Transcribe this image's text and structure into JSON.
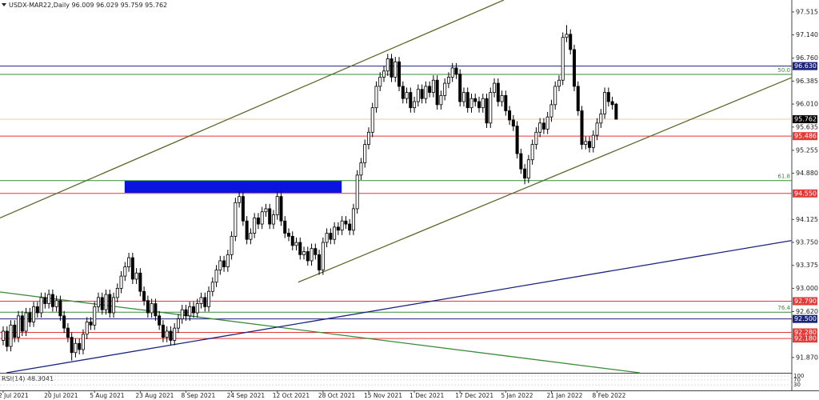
{
  "chart_data": {
    "type": "candlestick",
    "title": "USDX-MAR22,Daily",
    "categories": [
      "2 Jul 2021",
      null,
      null,
      null,
      null,
      null,
      null,
      null,
      null,
      null,
      null,
      null,
      "20 Jul 2021",
      null,
      null,
      null,
      null,
      null,
      null,
      null,
      null,
      null,
      null,
      null,
      "5 Aug 2021",
      null,
      null,
      null,
      null,
      null,
      null,
      null,
      null,
      null,
      null,
      null,
      "23 Aug 2021",
      null,
      null,
      null,
      null,
      null,
      null,
      null,
      null,
      null,
      null,
      null,
      "8 Sep 2021",
      null,
      null,
      null,
      null,
      null,
      null,
      null,
      null,
      null,
      null,
      null,
      "24 Sep 2021",
      null,
      null,
      null,
      null,
      null,
      null,
      null,
      null,
      null,
      null,
      null,
      "12 Oct 2021",
      null,
      null,
      null,
      null,
      null,
      null,
      null,
      null,
      null,
      null,
      null,
      "28 Oct 2021",
      null,
      null,
      null,
      null,
      null,
      null,
      null,
      null,
      null,
      null,
      null,
      "15 Nov 2021",
      null,
      null,
      null,
      null,
      null,
      null,
      null,
      null,
      null,
      null,
      null,
      "1 Dec 2021",
      null,
      null,
      null,
      null,
      null,
      null,
      null,
      null,
      null,
      null,
      null,
      "17 Dec 2021",
      null,
      null,
      null,
      null,
      null,
      null,
      null,
      null,
      null,
      null,
      null,
      "5 Jan 2022",
      null,
      null,
      null,
      null,
      null,
      null,
      null,
      null,
      null,
      null,
      null,
      "21 Jan 2022",
      null,
      null,
      null,
      null,
      null,
      null,
      null,
      null,
      null,
      null,
      null,
      "8 Feb 2022",
      null,
      null,
      null,
      null,
      null
    ],
    "candles": [
      [
        92.15,
        92.38,
        92.07,
        92.3
      ],
      [
        92.3,
        92.38,
        91.97,
        92.05
      ],
      [
        92.05,
        92.48,
        91.97,
        92.4
      ],
      [
        92.4,
        92.48,
        92.12,
        92.2
      ],
      [
        92.2,
        92.63,
        92.12,
        92.55
      ],
      [
        92.55,
        92.63,
        92.22,
        92.3
      ],
      [
        92.3,
        92.68,
        92.22,
        92.6
      ],
      [
        92.6,
        92.68,
        92.37,
        92.45
      ],
      [
        92.45,
        92.78,
        92.37,
        92.7
      ],
      [
        92.7,
        92.78,
        92.52,
        92.6
      ],
      [
        92.6,
        92.93,
        92.52,
        92.85
      ],
      [
        92.85,
        92.93,
        92.67,
        92.75
      ],
      [
        92.75,
        92.98,
        92.67,
        92.9
      ],
      [
        92.9,
        92.98,
        92.62,
        92.7
      ],
      [
        92.7,
        92.88,
        92.62,
        92.8
      ],
      [
        92.8,
        92.88,
        92.47,
        92.55
      ],
      [
        92.55,
        92.63,
        92.27,
        92.35
      ],
      [
        92.35,
        92.43,
        92.12,
        92.2
      ],
      [
        92.2,
        92.28,
        91.82,
        91.95
      ],
      [
        91.95,
        92.18,
        91.87,
        92.1
      ],
      [
        92.1,
        92.18,
        91.92,
        92.0
      ],
      [
        92.0,
        92.33,
        91.92,
        92.25
      ],
      [
        92.25,
        92.53,
        92.17,
        92.45
      ],
      [
        92.45,
        92.53,
        92.32,
        92.4
      ],
      [
        92.4,
        92.78,
        92.32,
        92.7
      ],
      [
        92.7,
        92.93,
        92.62,
        92.85
      ],
      [
        92.85,
        92.93,
        92.57,
        92.65
      ],
      [
        92.65,
        92.98,
        92.57,
        92.9
      ],
      [
        92.9,
        92.98,
        92.52,
        92.6
      ],
      [
        92.6,
        92.93,
        92.52,
        92.85
      ],
      [
        92.85,
        93.08,
        92.77,
        93.0
      ],
      [
        93.0,
        93.28,
        92.92,
        93.2
      ],
      [
        93.2,
        93.43,
        93.12,
        93.35
      ],
      [
        93.35,
        93.58,
        93.27,
        93.5
      ],
      [
        93.5,
        93.58,
        93.07,
        93.15
      ],
      [
        93.15,
        93.33,
        93.07,
        93.25
      ],
      [
        93.25,
        93.33,
        92.87,
        92.95
      ],
      [
        92.95,
        93.03,
        92.72,
        92.8
      ],
      [
        92.8,
        92.88,
        92.52,
        92.6
      ],
      [
        92.6,
        92.83,
        92.52,
        92.75
      ],
      [
        92.75,
        92.83,
        92.47,
        92.55
      ],
      [
        92.55,
        92.63,
        92.32,
        92.4
      ],
      [
        92.4,
        92.48,
        92.12,
        92.2
      ],
      [
        92.2,
        92.38,
        92.12,
        92.3
      ],
      [
        92.3,
        92.38,
        92.07,
        92.15
      ],
      [
        92.15,
        92.43,
        92.07,
        92.35
      ],
      [
        92.35,
        92.58,
        92.27,
        92.5
      ],
      [
        92.5,
        92.73,
        92.42,
        92.65
      ],
      [
        92.65,
        92.73,
        92.47,
        92.55
      ],
      [
        92.55,
        92.78,
        92.47,
        92.7
      ],
      [
        92.7,
        92.78,
        92.52,
        92.6
      ],
      [
        92.6,
        92.83,
        92.52,
        92.75
      ],
      [
        92.75,
        92.93,
        92.67,
        92.85
      ],
      [
        92.85,
        92.93,
        92.62,
        92.7
      ],
      [
        92.7,
        93.03,
        92.62,
        92.95
      ],
      [
        92.95,
        93.18,
        92.87,
        93.1
      ],
      [
        93.1,
        93.38,
        93.02,
        93.3
      ],
      [
        93.3,
        93.53,
        93.22,
        93.45
      ],
      [
        93.45,
        93.53,
        93.27,
        93.35
      ],
      [
        93.35,
        93.63,
        93.27,
        93.55
      ],
      [
        93.55,
        93.93,
        93.47,
        93.85
      ],
      [
        93.85,
        94.48,
        93.77,
        94.4
      ],
      [
        94.4,
        94.58,
        94.32,
        94.5
      ],
      [
        94.5,
        94.58,
        94.02,
        94.1
      ],
      [
        94.1,
        94.18,
        93.72,
        93.8
      ],
      [
        93.8,
        93.98,
        93.72,
        93.9
      ],
      [
        93.9,
        94.23,
        93.82,
        94.15
      ],
      [
        94.15,
        94.23,
        93.97,
        94.05
      ],
      [
        94.05,
        94.33,
        93.97,
        94.25
      ],
      [
        94.25,
        94.38,
        94.17,
        94.3
      ],
      [
        94.3,
        94.38,
        93.97,
        94.05
      ],
      [
        94.05,
        94.28,
        93.97,
        94.2
      ],
      [
        94.2,
        94.58,
        94.12,
        94.5
      ],
      [
        94.5,
        94.58,
        94.02,
        94.1
      ],
      [
        94.1,
        94.18,
        93.82,
        93.9
      ],
      [
        93.9,
        93.98,
        93.77,
        93.85
      ],
      [
        93.85,
        93.93,
        93.62,
        93.7
      ],
      [
        93.7,
        93.83,
        93.62,
        93.75
      ],
      [
        93.75,
        93.83,
        93.47,
        93.55
      ],
      [
        93.55,
        93.68,
        93.47,
        93.6
      ],
      [
        93.6,
        93.68,
        93.37,
        93.45
      ],
      [
        93.45,
        93.73,
        93.37,
        93.65
      ],
      [
        93.65,
        93.73,
        93.47,
        93.55
      ],
      [
        93.55,
        93.63,
        93.22,
        93.3
      ],
      [
        93.3,
        93.83,
        93.22,
        93.75
      ],
      [
        93.75,
        93.98,
        93.67,
        93.9
      ],
      [
        93.9,
        93.98,
        93.72,
        93.8
      ],
      [
        93.8,
        94.08,
        93.72,
        94.0
      ],
      [
        94.0,
        94.08,
        93.87,
        93.95
      ],
      [
        93.95,
        94.18,
        93.87,
        94.1
      ],
      [
        94.1,
        94.18,
        93.97,
        94.05
      ],
      [
        94.05,
        94.13,
        93.87,
        93.95
      ],
      [
        93.95,
        94.38,
        93.87,
        94.3
      ],
      [
        94.3,
        94.93,
        94.22,
        94.85
      ],
      [
        94.85,
        95.13,
        94.77,
        95.05
      ],
      [
        95.05,
        95.43,
        94.97,
        95.35
      ],
      [
        95.35,
        95.63,
        95.27,
        95.55
      ],
      [
        95.55,
        96.03,
        95.47,
        95.95
      ],
      [
        95.95,
        96.38,
        95.87,
        96.3
      ],
      [
        96.3,
        96.53,
        96.22,
        96.45
      ],
      [
        96.45,
        96.63,
        96.37,
        96.55
      ],
      [
        96.55,
        96.83,
        96.47,
        96.75
      ],
      [
        96.75,
        96.83,
        96.37,
        96.45
      ],
      [
        96.45,
        96.78,
        96.37,
        96.7
      ],
      [
        96.7,
        96.78,
        96.22,
        96.3
      ],
      [
        96.3,
        96.38,
        96.02,
        96.1
      ],
      [
        96.1,
        96.28,
        96.02,
        96.2
      ],
      [
        96.2,
        96.28,
        95.87,
        95.95
      ],
      [
        95.95,
        96.13,
        95.87,
        96.05
      ],
      [
        96.05,
        96.33,
        95.97,
        96.25
      ],
      [
        96.25,
        96.33,
        96.02,
        96.1
      ],
      [
        96.1,
        96.38,
        96.02,
        96.3
      ],
      [
        96.3,
        96.38,
        96.12,
        96.2
      ],
      [
        96.2,
        96.48,
        96.12,
        96.4
      ],
      [
        96.4,
        96.48,
        95.92,
        96.0
      ],
      [
        96.0,
        96.23,
        95.92,
        96.15
      ],
      [
        96.15,
        96.43,
        96.07,
        96.35
      ],
      [
        96.35,
        96.53,
        96.27,
        96.45
      ],
      [
        96.45,
        96.68,
        96.37,
        96.6
      ],
      [
        96.6,
        96.68,
        96.42,
        96.5
      ],
      [
        96.5,
        96.58,
        95.97,
        96.05
      ],
      [
        96.05,
        96.28,
        95.97,
        96.2
      ],
      [
        96.2,
        96.28,
        95.87,
        95.95
      ],
      [
        95.95,
        96.18,
        95.87,
        96.1
      ],
      [
        96.1,
        96.18,
        95.97,
        96.05
      ],
      [
        96.05,
        96.13,
        95.87,
        95.95
      ],
      [
        95.95,
        96.18,
        95.87,
        96.1
      ],
      [
        96.1,
        96.18,
        95.62,
        95.7
      ],
      [
        95.7,
        96.28,
        95.62,
        96.2
      ],
      [
        96.2,
        96.43,
        96.12,
        96.35
      ],
      [
        96.35,
        96.43,
        95.97,
        96.05
      ],
      [
        96.05,
        96.23,
        95.97,
        96.15
      ],
      [
        96.15,
        96.23,
        95.82,
        95.9
      ],
      [
        95.9,
        95.98,
        95.67,
        95.75
      ],
      [
        95.75,
        95.83,
        95.57,
        95.65
      ],
      [
        95.65,
        95.73,
        95.12,
        95.2
      ],
      [
        95.2,
        95.28,
        94.87,
        94.95
      ],
      [
        94.95,
        95.03,
        94.7,
        94.8
      ],
      [
        94.8,
        95.18,
        94.72,
        95.1
      ],
      [
        95.1,
        95.43,
        95.02,
        95.35
      ],
      [
        95.35,
        95.63,
        95.27,
        95.55
      ],
      [
        95.55,
        95.78,
        95.47,
        95.7
      ],
      [
        95.7,
        95.78,
        95.52,
        95.6
      ],
      [
        95.6,
        95.88,
        95.52,
        95.8
      ],
      [
        95.8,
        96.08,
        95.72,
        96.0
      ],
      [
        96.0,
        96.38,
        95.92,
        96.3
      ],
      [
        96.3,
        96.48,
        96.22,
        96.4
      ],
      [
        96.4,
        97.18,
        96.32,
        97.1
      ],
      [
        97.1,
        97.3,
        97.02,
        97.15
      ],
      [
        97.15,
        97.23,
        96.82,
        96.9
      ],
      [
        96.9,
        96.98,
        96.22,
        96.3
      ],
      [
        96.3,
        96.38,
        95.82,
        95.9
      ],
      [
        95.9,
        95.98,
        95.27,
        95.35
      ],
      [
        95.35,
        95.48,
        95.27,
        95.4
      ],
      [
        95.4,
        95.48,
        95.22,
        95.3
      ],
      [
        95.3,
        95.58,
        95.22,
        95.5
      ],
      [
        95.5,
        95.78,
        95.42,
        95.7
      ],
      [
        95.7,
        95.93,
        95.62,
        95.85
      ],
      [
        95.85,
        96.28,
        95.77,
        96.2
      ],
      [
        96.2,
        96.28,
        95.97,
        96.05
      ],
      [
        96.05,
        96.13,
        95.92,
        96.0
      ],
      [
        96.009,
        96.029,
        95.759,
        95.762
      ]
    ],
    "ylim": [
      91.62,
      97.71
    ],
    "yticks": [
      {
        "value": 97.515,
        "label": "97.515"
      },
      {
        "value": 97.14,
        "label": "97.140"
      },
      {
        "value": 96.76,
        "label": "96.760"
      },
      {
        "value": 96.385,
        "label": "96.385"
      },
      {
        "value": 96.01,
        "label": "96.010"
      },
      {
        "value": 95.635,
        "label": "95.635"
      },
      {
        "value": 95.255,
        "label": "95.255"
      },
      {
        "value": 94.88,
        "label": "94.880"
      },
      {
        "value": 94.125,
        "label": "94.125"
      },
      {
        "value": 93.75,
        "label": "93.750"
      },
      {
        "value": 93.375,
        "label": "93.375"
      },
      {
        "value": 93.0,
        "label": "93.000"
      },
      {
        "value": 92.62,
        "label": "92.620"
      },
      {
        "value": 91.87,
        "label": "91.870"
      }
    ],
    "price_lines": [
      {
        "value": 96.63,
        "label": "96.630",
        "color": "#1a237e"
      },
      {
        "value": 95.486,
        "label": "95.486",
        "color": "#e53935"
      },
      {
        "value": 94.55,
        "label": "94.550",
        "color": "#e53935"
      },
      {
        "value": 92.79,
        "label": "92.790",
        "color": "#e53935"
      },
      {
        "value": 92.5,
        "label": "92.500",
        "color": "#1a237e"
      },
      {
        "value": 92.28,
        "label": "92.280",
        "color": "#e53935"
      },
      {
        "value": 92.18,
        "label": "92.180",
        "color": "#e53935"
      }
    ],
    "fib_lines": [
      {
        "level": "50.0",
        "value": 96.495,
        "color": "#3a8a3a"
      },
      {
        "level": "61.8",
        "value": 94.76,
        "color": "#3a8a3a"
      },
      {
        "level": "76.4",
        "value": 92.61,
        "color": "#3a8a3a"
      }
    ],
    "trendlines": [
      {
        "x": [
          -0.84,
          131.5
        ],
        "y": [
          94.15,
          97.71
        ],
        "color": "#5a6b2a"
      },
      {
        "x": [
          77.5,
          207
        ],
        "y": [
          93.1,
          96.44
        ],
        "color": "#5a6b2a"
      },
      {
        "x": [
          -0.84,
          167.2
        ],
        "y": [
          92.94,
          91.62
        ],
        "color": "#3a8a3a"
      },
      {
        "x": [
          0.84,
          207
        ],
        "y": [
          91.62,
          93.78
        ],
        "color": "#1a237e"
      }
    ],
    "zone": {
      "x": [
        31.9,
        88.9
      ],
      "y": [
        94.76,
        94.56
      ],
      "color": "#0a14e0"
    },
    "indicator": {
      "label": "RSI(14)",
      "value": 48.3041,
      "ylim": [
        0,
        100
      ],
      "yticks": [
        100,
        70,
        30
      ]
    }
  }
}
